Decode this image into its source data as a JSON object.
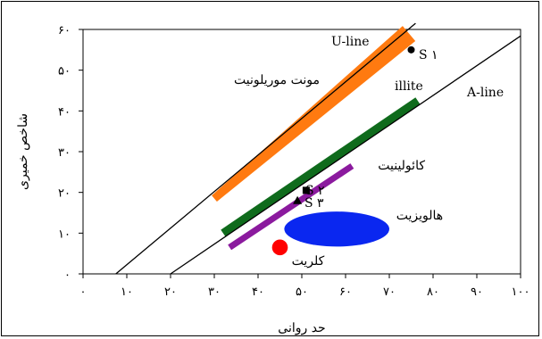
{
  "chart_data": {
    "type": "scatter",
    "title": "",
    "xlabel": "حد روانی",
    "ylabel": "شاخص خمیری",
    "xlim": [
      0,
      100
    ],
    "ylim": [
      0,
      60
    ],
    "x_ticks": [
      0,
      10,
      20,
      30,
      40,
      50,
      60,
      70,
      80,
      90,
      100
    ],
    "x_tick_labels": [
      "۰",
      "۱۰",
      "۲۰",
      "۳۰",
      "۴۰",
      "۵۰",
      "۶۰",
      "۷۰",
      "۸۰",
      "۹۰",
      "۱۰۰"
    ],
    "y_ticks": [
      0,
      10,
      20,
      30,
      40,
      50,
      60
    ],
    "y_tick_labels": [
      "۰",
      "۱۰",
      "۲۰",
      "۳۰",
      "۴۰",
      "۵۰",
      "۶۰"
    ],
    "grid": false,
    "lines": [
      {
        "label": "U-line",
        "points": [
          [
            7.5,
            0
          ],
          [
            76,
            61.5
          ]
        ],
        "color": "#000000"
      },
      {
        "label": "A-line",
        "points": [
          [
            20,
            0
          ],
          [
            100,
            58.4
          ]
        ],
        "color": "#000000"
      }
    ],
    "bands": [
      {
        "label": "مونت موریلونیت",
        "points": [
          [
            30,
            18.5
          ],
          [
            74.5,
            59
          ]
        ],
        "color": "#ff7a10",
        "kind": "wedge"
      },
      {
        "label": "illite",
        "points": [
          [
            32,
            10
          ],
          [
            76.5,
            42.5
          ]
        ],
        "color": "#0f6b1c",
        "kind": "band"
      },
      {
        "label": "کائولینیت",
        "points": [
          [
            33.5,
            6.5
          ],
          [
            61.5,
            26.5
          ]
        ],
        "color": "#8b1a9e",
        "kind": "band"
      }
    ],
    "regions": [
      {
        "label": "هالویزیت",
        "shape": "ellipse",
        "center": [
          58,
          11
        ],
        "radius": [
          12,
          4.3
        ],
        "color": "#0a27f0"
      },
      {
        "label": "کلریت",
        "shape": "circle",
        "center": [
          45,
          6.5
        ],
        "radius": [
          1.8,
          1.8
        ],
        "color": "#ff0000"
      }
    ],
    "points": [
      {
        "label": "S ۱",
        "x": 75,
        "y": 55,
        "marker": "circle",
        "color": "#000000"
      },
      {
        "label": "S ۲",
        "x": 51,
        "y": 20.5,
        "marker": "square",
        "color": "#000000"
      },
      {
        "label": "S ۳",
        "x": 49,
        "y": 18,
        "marker": "triangle",
        "color": "#000000"
      }
    ]
  }
}
